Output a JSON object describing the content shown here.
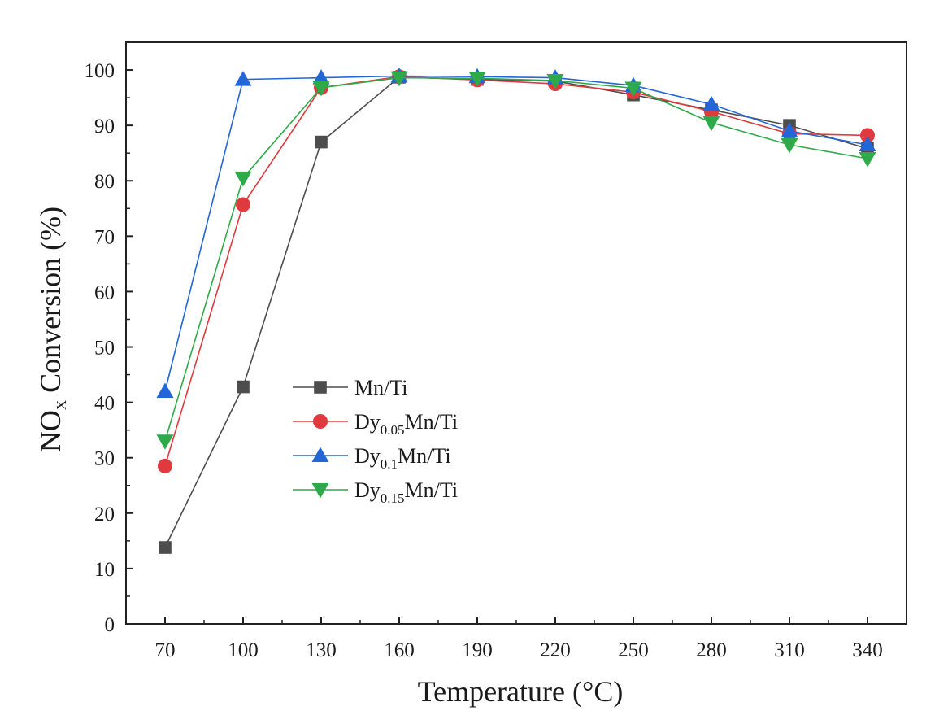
{
  "chart_data": {
    "type": "line",
    "x": [
      70,
      100,
      130,
      160,
      190,
      220,
      250,
      280,
      310,
      340
    ],
    "xlim": [
      55,
      355
    ],
    "ylim": [
      0,
      105
    ],
    "xticks": [
      70,
      100,
      130,
      160,
      190,
      220,
      250,
      280,
      310,
      340
    ],
    "yticks": [
      0,
      10,
      20,
      30,
      40,
      50,
      60,
      70,
      80,
      90,
      100
    ],
    "xlabel": "Temperature (°C)",
    "ylabel": {
      "main": "NO",
      "sub": "X",
      "rest": " Conversion (%)"
    },
    "grid": false,
    "legend_position": "center-left",
    "series": [
      {
        "name": {
          "pre": "Mn/Ti",
          "sub": "",
          "post": ""
        },
        "marker": "square",
        "color": "#4d4d4d",
        "values": [
          13.8,
          42.8,
          87,
          98.7,
          98.3,
          98,
          95.5,
          92.8,
          90,
          85.8
        ]
      },
      {
        "name": {
          "pre": "Dy",
          "sub": "0.05",
          "post": "Mn/Ti"
        },
        "marker": "circle",
        "color": "#e03a3e",
        "values": [
          28.5,
          75.7,
          96.8,
          98.8,
          98.2,
          97.5,
          96,
          92.5,
          88.5,
          88.2
        ]
      },
      {
        "name": {
          "pre": "Dy",
          "sub": "0.1",
          "post": "Mn/Ti"
        },
        "marker": "triangle-up",
        "color": "#2266d8",
        "values": [
          42,
          98.3,
          98.6,
          98.9,
          98.8,
          98.6,
          97.2,
          93.8,
          89,
          86.5
        ]
      },
      {
        "name": {
          "pre": "Dy",
          "sub": "0.15",
          "post": "Mn/Ti"
        },
        "marker": "triangle-down",
        "color": "#2eaa4a",
        "values": [
          33,
          80.5,
          96.8,
          98.6,
          98.5,
          98.1,
          96.7,
          90.5,
          86.5,
          84
        ]
      }
    ]
  }
}
